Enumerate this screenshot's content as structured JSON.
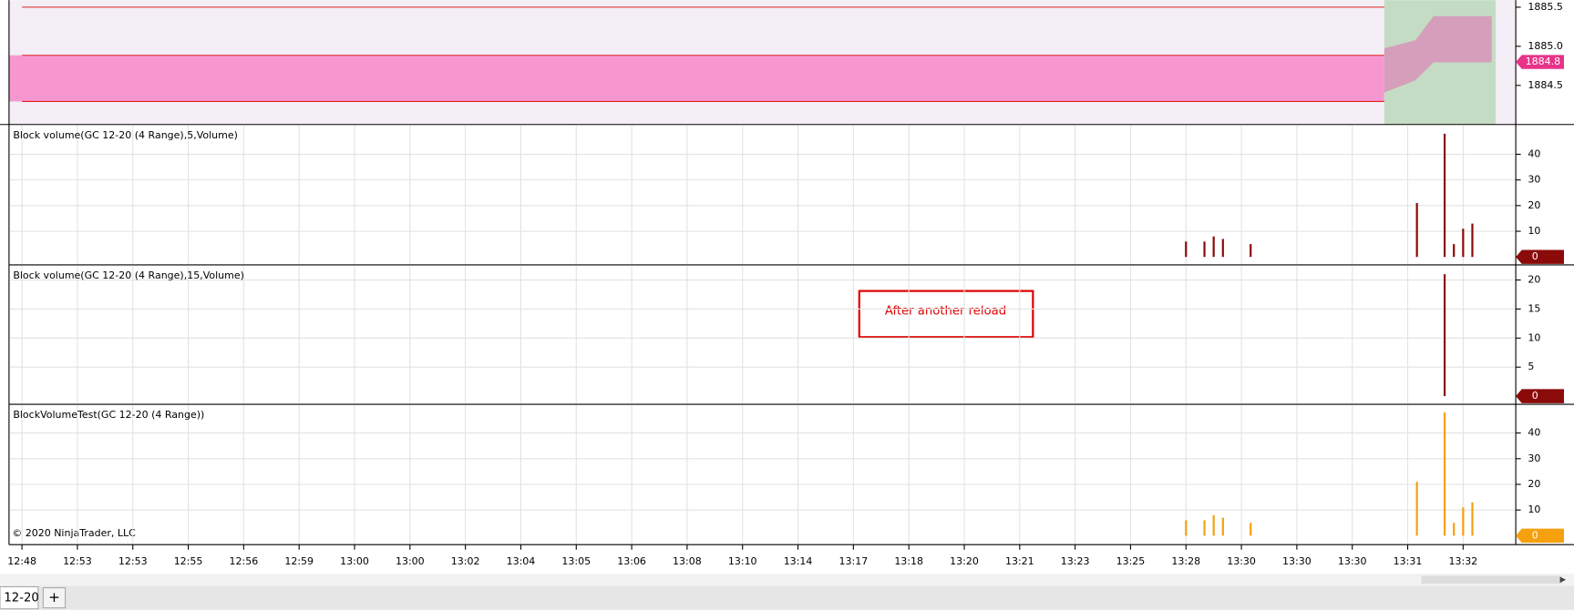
{
  "chart_data": [
    {
      "type": "price",
      "ylim": [
        1884.0,
        1885.59
      ],
      "yticks": [
        {
          "value": 1884.5,
          "label": "1884.5"
        },
        {
          "value": 1885,
          "label": "1885.0"
        },
        1885.5
      ],
      "last_price": 1884.8,
      "color": "#e8338a"
    },
    {
      "type": "bar",
      "title": "Block volume(GC 12-20 (4 Range),5,Volume)",
      "x": [
        126,
        128,
        129,
        130,
        133,
        151,
        154,
        155,
        156,
        157
      ],
      "values": [
        6,
        6,
        8,
        7,
        5,
        21,
        48,
        5,
        11,
        13
      ],
      "color": "#8b0a0a",
      "ylim": [
        -3.1,
        51.6
      ],
      "yticks": [
        10,
        20,
        30,
        40
      ],
      "last_value": 0,
      "grid": true
    },
    {
      "type": "bar",
      "title": "Block volume(GC 12-20 (4 Range),15,Volume)",
      "x": [
        154
      ],
      "values": [
        21
      ],
      "color": "#8b0a0a",
      "ylim": [
        -1.4,
        22.6
      ],
      "yticks": [
        5,
        10,
        15,
        20
      ],
      "last_value": 0,
      "grid": true,
      "annotation": "After another reload"
    },
    {
      "type": "bar",
      "title": "BlockVolumeTest(GC 12-20 (4 Range))",
      "x": [
        126,
        128,
        129,
        130,
        133,
        151,
        154,
        155,
        156,
        157
      ],
      "values": [
        6,
        6,
        8,
        7,
        5,
        21,
        48,
        5,
        11,
        13
      ],
      "color": "#f5a00f",
      "ylim": [
        -3.5,
        51.2
      ],
      "yticks": [
        10,
        20,
        30,
        40
      ],
      "last_value": 0,
      "grid": true
    }
  ],
  "x_axis": {
    "xlim": [
      -1.4,
      161.7
    ],
    "xticks": [
      {
        "value": 0,
        "label": "12:48"
      },
      {
        "value": 6,
        "label": "12:53"
      },
      {
        "value": 12,
        "label": "12:53"
      },
      {
        "value": 18,
        "label": "12:55"
      },
      {
        "value": 24,
        "label": "12:56"
      },
      {
        "value": 30,
        "label": "12:59"
      },
      {
        "value": 36,
        "label": "13:00"
      },
      {
        "value": 42,
        "label": "13:00"
      },
      {
        "value": 48,
        "label": "13:02"
      },
      {
        "value": 54,
        "label": "13:04"
      },
      {
        "value": 60,
        "label": "13:05"
      },
      {
        "value": 66,
        "label": "13:06"
      },
      {
        "value": 72,
        "label": "13:08"
      },
      {
        "value": 78,
        "label": "13:10"
      },
      {
        "value": 84,
        "label": "13:14"
      },
      {
        "value": 90,
        "label": "13:17"
      },
      {
        "value": 96,
        "label": "13:18"
      },
      {
        "value": 102,
        "label": "13:20"
      },
      {
        "value": 108,
        "label": "13:21"
      },
      {
        "value": 114,
        "label": "13:23"
      },
      {
        "value": 120,
        "label": "13:25"
      },
      {
        "value": 126,
        "label": "13:28"
      },
      {
        "value": 132,
        "label": "13:30"
      },
      {
        "value": 138,
        "label": "13:30"
      },
      {
        "value": 144,
        "label": "13:30"
      },
      {
        "value": 150,
        "label": "13:31"
      },
      {
        "value": 156,
        "label": "13:32"
      }
    ]
  },
  "copyright": "© 2020 NinjaTrader, LLC",
  "tab": "12-20",
  "add_tab": "+"
}
